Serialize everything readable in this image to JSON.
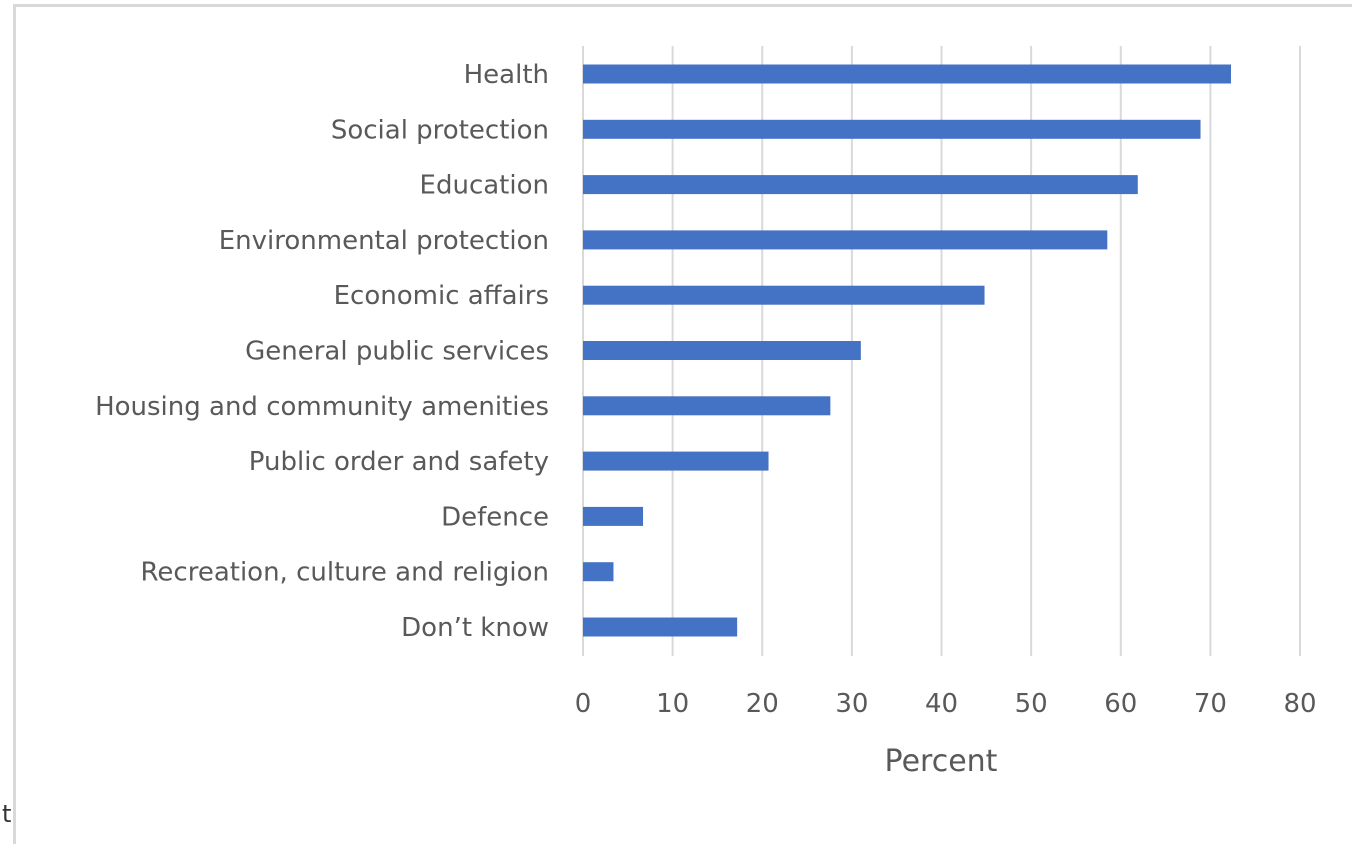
{
  "colors": {
    "bar": "#4472c4",
    "grid": "#d9d9d9",
    "text": "#595959"
  },
  "stray_text": "t",
  "chart_data": {
    "type": "bar",
    "orientation": "horizontal",
    "categories": [
      "Health",
      "Social protection",
      "Education",
      "Environmental protection",
      "Economic affairs",
      "General public services",
      "Housing and community amenities",
      "Public order and safety",
      "Defence",
      "Recreation, culture and religion",
      "Don’t know"
    ],
    "values": [
      72.3,
      68.9,
      61.9,
      58.5,
      44.8,
      31.0,
      27.6,
      20.7,
      6.7,
      3.4,
      17.2
    ],
    "title": "",
    "xlabel": "Percent",
    "ylabel": "",
    "xlim": [
      0,
      80
    ],
    "xticks": [
      "0",
      "10",
      "20",
      "30",
      "40",
      "50",
      "60",
      "70",
      "80"
    ],
    "grid": "vertical",
    "legend": "none"
  }
}
